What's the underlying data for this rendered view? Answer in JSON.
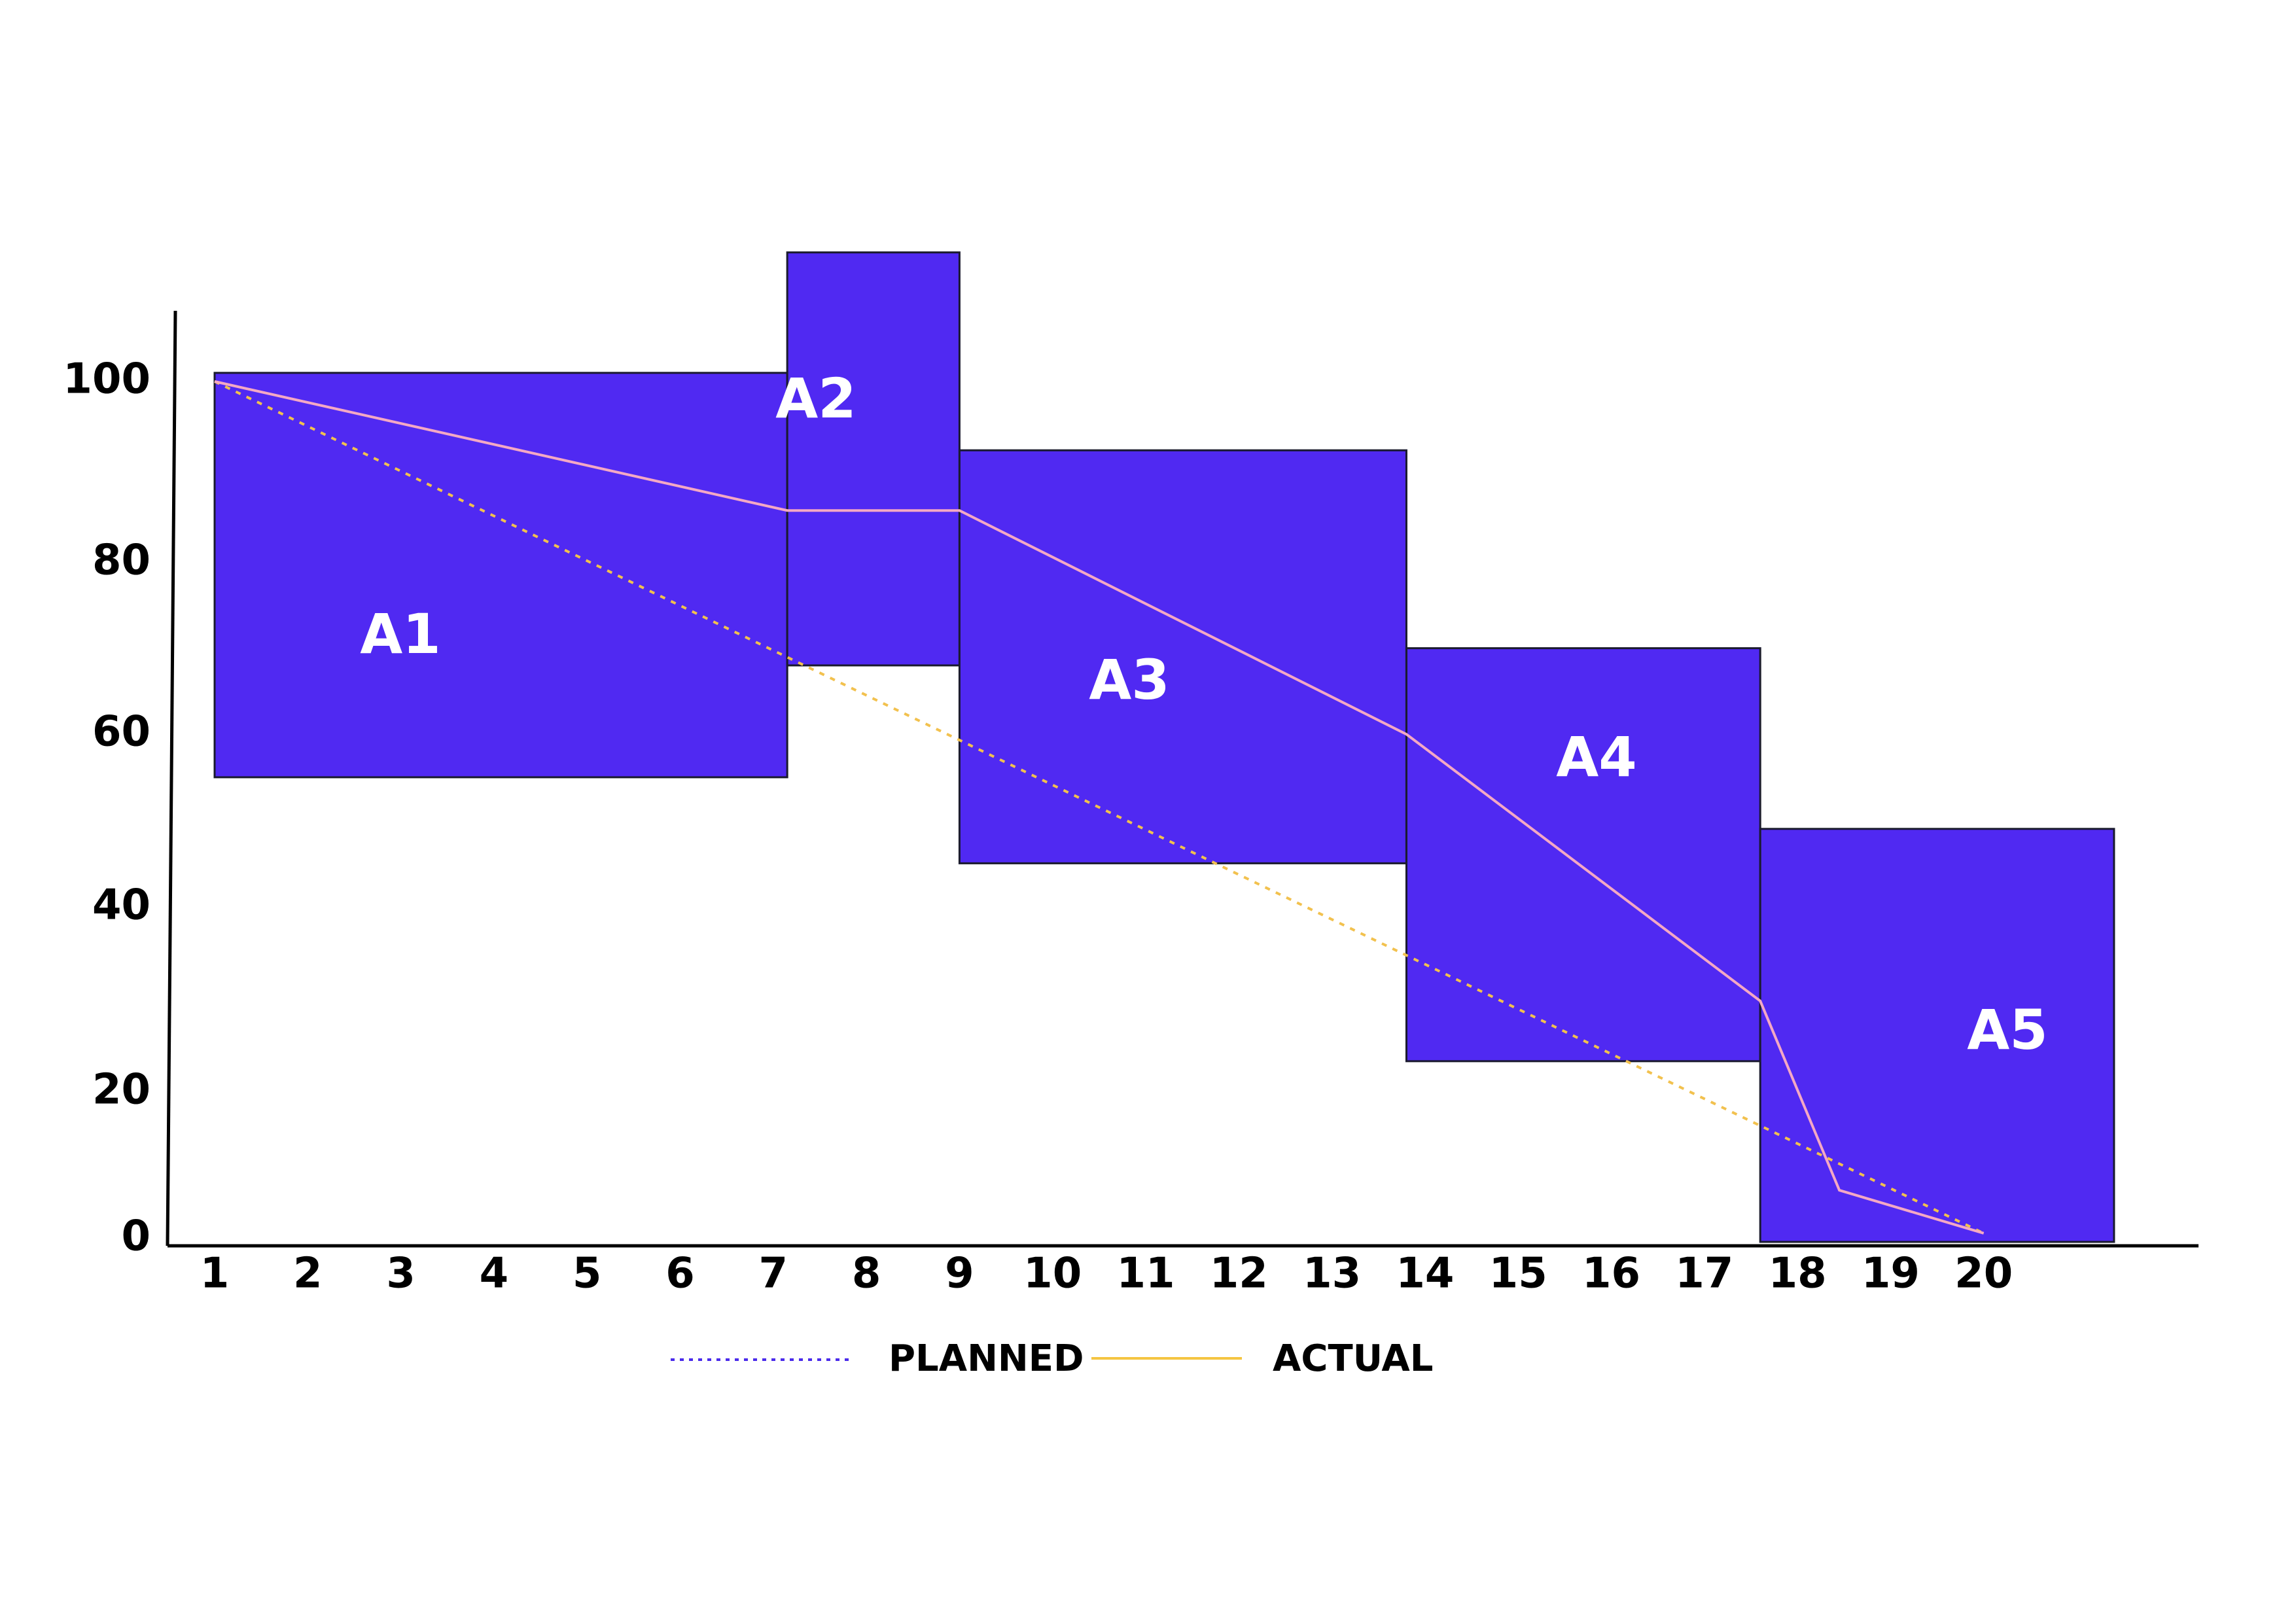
{
  "chart_data": {
    "type": "line",
    "x": [
      1,
      2,
      3,
      4,
      5,
      6,
      7,
      8,
      9,
      10,
      11,
      12,
      13,
      14,
      15,
      16,
      17,
      18,
      19,
      20
    ],
    "y_ticks": [
      0,
      20,
      40,
      60,
      80,
      100
    ],
    "ylim": [
      0,
      110
    ],
    "grid": false,
    "legend_placement": "bottom-center",
    "blocks": [
      {
        "label": "A1",
        "x_start": 1.0,
        "x_end": 7.15,
        "y_low": 54,
        "y_high": 101
      },
      {
        "label": "A2",
        "x_start": 7.15,
        "x_end": 9.0,
        "y_low": 67,
        "y_high": 115
      },
      {
        "label": "A3",
        "x_start": 9.0,
        "x_end": 13.8,
        "y_low": 44,
        "y_high": 92
      },
      {
        "label": "A4",
        "x_start": 13.8,
        "x_end": 17.6,
        "y_low": 21,
        "y_high": 69
      },
      {
        "label": "A5",
        "x_start": 17.6,
        "x_end": 21.4,
        "y_low": 0,
        "y_high": 48
      }
    ],
    "series": [
      {
        "name": "PLANNED",
        "style": "dotted",
        "points": [
          [
            1,
            100
          ],
          [
            20,
            1
          ]
        ]
      },
      {
        "name": "ACTUAL",
        "style": "solid",
        "points": [
          [
            1,
            100
          ],
          [
            7.15,
            85
          ],
          [
            9.0,
            85
          ],
          [
            13.8,
            59
          ],
          [
            17.6,
            28
          ],
          [
            18.45,
            6
          ],
          [
            20,
            1
          ]
        ]
      }
    ]
  },
  "colors": {
    "block_fill": "#5029F2",
    "block_stroke": "#1a1a2e",
    "planned_line": "#F2C14E",
    "actual_line": "#F4A8C4",
    "legend_planned_swatch": "#4B2BEB",
    "legend_actual_swatch": "#F5C542",
    "axis": "#000000"
  },
  "legend": [
    {
      "label": "PLANNED",
      "swatch_style": "dotted"
    },
    {
      "label": "ACTUAL",
      "swatch_style": "solid"
    }
  ]
}
